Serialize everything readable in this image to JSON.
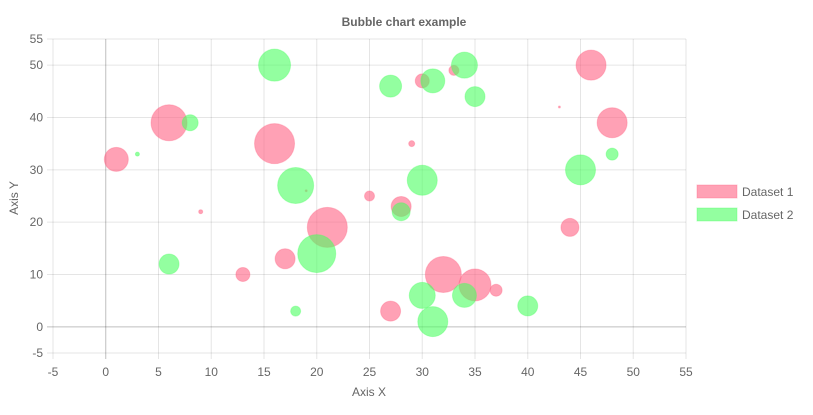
{
  "chart_data": {
    "type": "bubble",
    "title": "Bubble chart example",
    "xlabel": "Axis X",
    "ylabel": "Axis Y",
    "xlim": [
      -5,
      55
    ],
    "ylim": [
      -5,
      55
    ],
    "x_ticks": [
      -5,
      0,
      5,
      10,
      15,
      20,
      25,
      30,
      35,
      40,
      45,
      50,
      55
    ],
    "y_ticks": [
      -5,
      0,
      10,
      20,
      30,
      40,
      50,
      55
    ],
    "grid": true,
    "legend_position": "right",
    "series": [
      {
        "name": "Dataset 1",
        "color": "#ff6384",
        "points": [
          {
            "x": 1,
            "y": 32,
            "r": 12
          },
          {
            "x": 6,
            "y": 39,
            "r": 18
          },
          {
            "x": 9,
            "y": 22,
            "r": 2
          },
          {
            "x": 13,
            "y": 10,
            "r": 7
          },
          {
            "x": 16,
            "y": 35,
            "r": 20
          },
          {
            "x": 17,
            "y": 13,
            "r": 10
          },
          {
            "x": 19,
            "y": 26,
            "r": 1
          },
          {
            "x": 21,
            "y": 19,
            "r": 20
          },
          {
            "x": 25,
            "y": 25,
            "r": 5
          },
          {
            "x": 27,
            "y": 3,
            "r": 10
          },
          {
            "x": 28,
            "y": 23,
            "r": 10
          },
          {
            "x": 29,
            "y": 35,
            "r": 3
          },
          {
            "x": 30,
            "y": 47,
            "r": 7
          },
          {
            "x": 32,
            "y": 10,
            "r": 18
          },
          {
            "x": 33,
            "y": 49,
            "r": 5
          },
          {
            "x": 35,
            "y": 8,
            "r": 16
          },
          {
            "x": 37,
            "y": 7,
            "r": 6
          },
          {
            "x": 43,
            "y": 42,
            "r": 1
          },
          {
            "x": 44,
            "y": 19,
            "r": 9
          },
          {
            "x": 46,
            "y": 50,
            "r": 15
          },
          {
            "x": 48,
            "y": 39,
            "r": 15
          }
        ]
      },
      {
        "name": "Dataset 2",
        "color": "#4bff61",
        "points": [
          {
            "x": 3,
            "y": 33,
            "r": 2
          },
          {
            "x": 6,
            "y": 12,
            "r": 10
          },
          {
            "x": 8,
            "y": 39,
            "r": 8
          },
          {
            "x": 16,
            "y": 50,
            "r": 16
          },
          {
            "x": 18,
            "y": 3,
            "r": 5
          },
          {
            "x": 18,
            "y": 27,
            "r": 18
          },
          {
            "x": 20,
            "y": 14,
            "r": 19
          },
          {
            "x": 27,
            "y": 46,
            "r": 11
          },
          {
            "x": 28,
            "y": 22,
            "r": 9
          },
          {
            "x": 30,
            "y": 6,
            "r": 13
          },
          {
            "x": 30,
            "y": 28,
            "r": 15
          },
          {
            "x": 31,
            "y": 1,
            "r": 15
          },
          {
            "x": 31,
            "y": 47,
            "r": 12
          },
          {
            "x": 34,
            "y": 6,
            "r": 12
          },
          {
            "x": 34,
            "y": 50,
            "r": 13
          },
          {
            "x": 35,
            "y": 44,
            "r": 10
          },
          {
            "x": 40,
            "y": 4,
            "r": 10
          },
          {
            "x": 45,
            "y": 30,
            "r": 15
          },
          {
            "x": 48,
            "y": 33,
            "r": 6
          }
        ]
      }
    ]
  }
}
